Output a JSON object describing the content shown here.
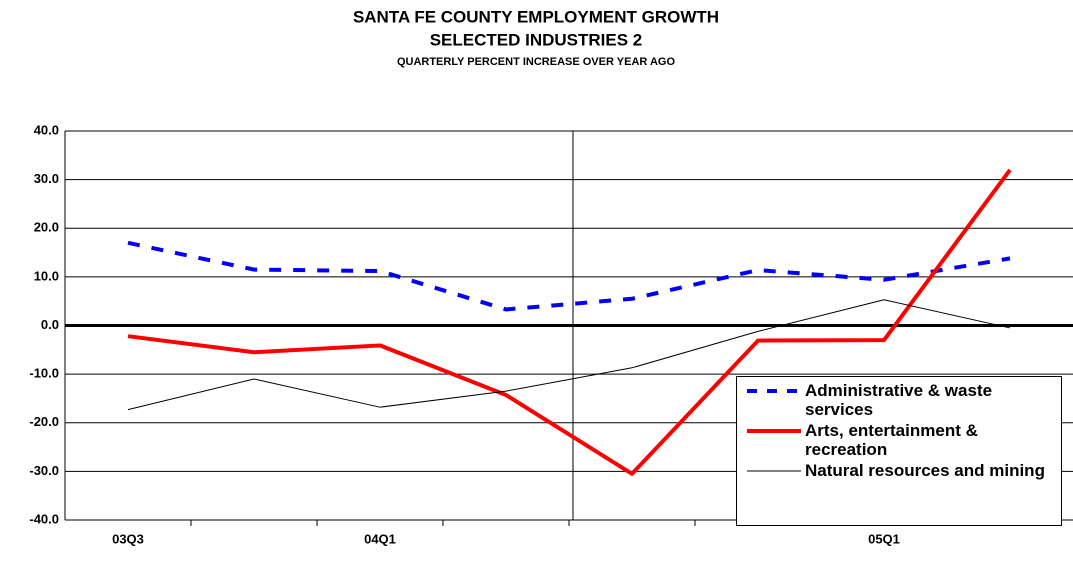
{
  "chart_data": {
    "type": "line",
    "title": "SANTA FE COUNTY EMPLOYMENT GROWTH",
    "subtitle": "SELECTED INDUSTRIES 2",
    "note": "QUARTERLY PERCENT INCREASE OVER YEAR AGO",
    "categories": [
      "03Q3",
      null,
      "04Q1",
      null,
      null,
      null,
      "05Q1",
      null
    ],
    "series": [
      {
        "name": "Administrative & waste services",
        "color": "#0000ff",
        "dash": true,
        "width": 4,
        "values": [
          17.0,
          11.5,
          11.2,
          3.3,
          5.5,
          11.4,
          9.4,
          13.8
        ]
      },
      {
        "name": "Arts, entertainment & recreation",
        "color": "#ff0000",
        "dash": false,
        "width": 4,
        "values": [
          -2.2,
          -5.5,
          -4.1,
          -14.3,
          -30.5,
          -3.1,
          -3.0,
          32.0
        ]
      },
      {
        "name": "Natural resources and mining",
        "color": "#000000",
        "dash": false,
        "width": 1,
        "values": [
          -17.3,
          -11.0,
          -16.8,
          -13.5,
          -8.7,
          -1.2,
          5.3,
          -0.5
        ]
      }
    ],
    "ylim": [
      -40,
      40
    ],
    "yticks": [
      {
        "value": -40,
        "label": "-40.0"
      },
      {
        "value": -30,
        "label": "-30.0"
      },
      {
        "value": -20,
        "label": "-20.0"
      },
      {
        "value": -10,
        "label": "-10.0"
      },
      {
        "value": 0,
        "label": "0.0"
      },
      {
        "value": 10,
        "label": "10.0"
      },
      {
        "value": 20,
        "label": "20.0"
      },
      {
        "value": 30,
        "label": "30.0"
      },
      {
        "value": 40,
        "label": "40.0"
      }
    ],
    "grid": true,
    "legend": "lower right"
  }
}
